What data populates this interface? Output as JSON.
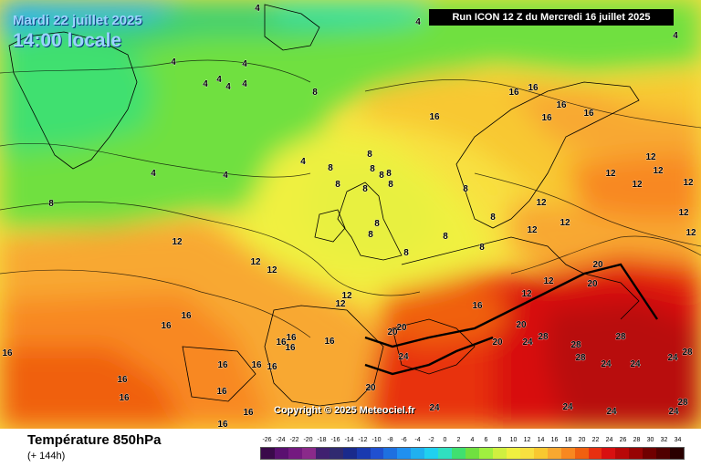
{
  "header": {
    "date": "Mardi 22 juillet 2025",
    "time": "14:00 locale",
    "run": "Run ICON 12 Z du Mercredi 16 juillet 2025"
  },
  "copyright": "Copyright © 2025 Meteociel.fr",
  "variable": {
    "title": "Température 850hPa",
    "lead": "(+ 144h)"
  },
  "legend": {
    "labels": [
      "-26",
      "-24",
      "-22",
      "-20",
      "-18",
      "-16",
      "-14",
      "-12",
      "-10",
      "-8",
      "-6",
      "-4",
      "-2",
      "0",
      "2",
      "4",
      "6",
      "8",
      "10",
      "12",
      "14",
      "16",
      "18",
      "20",
      "22",
      "24",
      "26",
      "28",
      "30",
      "32",
      "34"
    ],
    "colors": [
      "#3a0a4a",
      "#5a1070",
      "#741a80",
      "#8a2a8a",
      "#402070",
      "#302a70",
      "#1a2a8c",
      "#1a3ab0",
      "#2050d0",
      "#1e70e0",
      "#2090f0",
      "#20b0f0",
      "#20d0f0",
      "#30e0c0",
      "#40e070",
      "#70e040",
      "#a0f040",
      "#d0f040",
      "#f0f040",
      "#f8e040",
      "#f8c830",
      "#f8a830",
      "#f88820",
      "#f06010",
      "#e83010",
      "#d81010",
      "#b80808",
      "#980404",
      "#700000",
      "#500000",
      "#2a0000"
    ]
  },
  "isotherm_labels": [
    "4",
    "4",
    "4",
    "4",
    "4",
    "4",
    "4",
    "4",
    "4",
    "4",
    "4",
    "4",
    "8",
    "8",
    "8",
    "8",
    "8",
    "8",
    "8",
    "8",
    "8",
    "8",
    "8",
    "8",
    "8",
    "8",
    "8",
    "8",
    "8",
    "12",
    "12",
    "12",
    "12",
    "12",
    "12",
    "12",
    "12",
    "12",
    "12",
    "12",
    "12",
    "12",
    "12",
    "12",
    "12",
    "12",
    "16",
    "16",
    "16",
    "16",
    "16",
    "16",
    "16",
    "16",
    "16",
    "16",
    "16",
    "16",
    "16",
    "16",
    "16",
    "16",
    "16",
    "16",
    "16",
    "16",
    "16",
    "16",
    "20",
    "20",
    "20",
    "20",
    "20",
    "20",
    "20",
    "24",
    "24",
    "24",
    "24",
    "24",
    "24",
    "24",
    "24",
    "24",
    "28",
    "28",
    "28",
    "28",
    "28",
    "28"
  ]
}
